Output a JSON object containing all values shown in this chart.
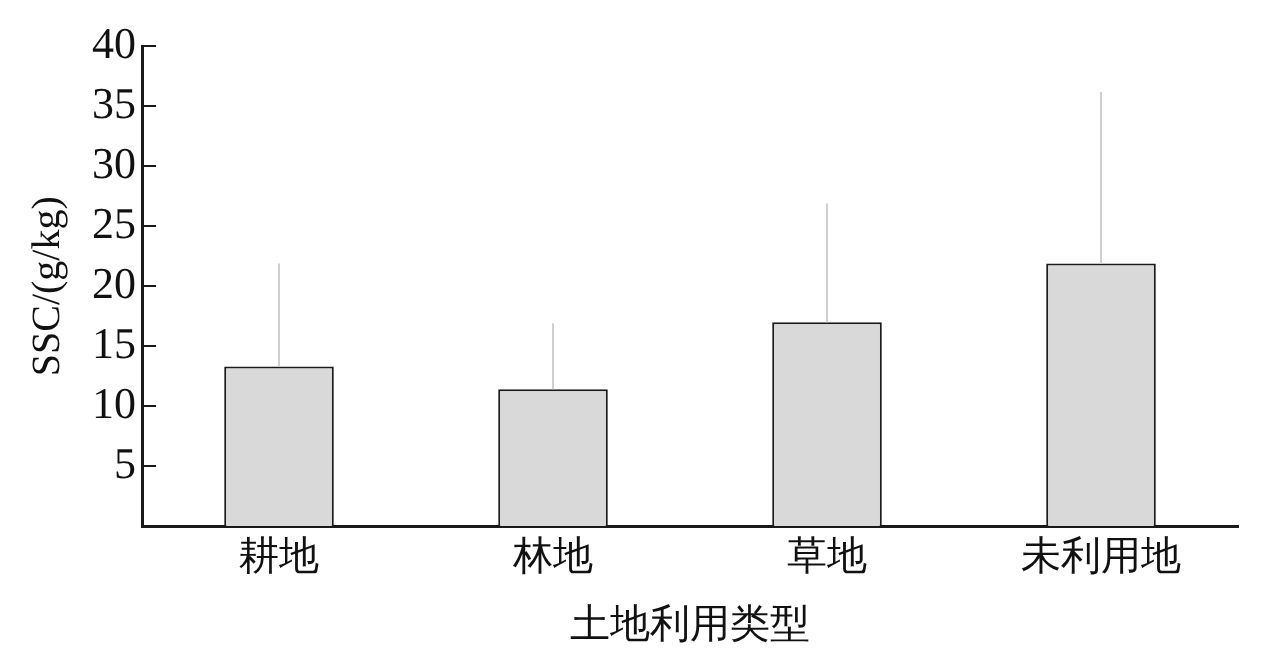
{
  "chart_data": {
    "type": "bar",
    "xlabel": "土地利用类型",
    "ylabel": "SSC/(g/kg)",
    "categories": [
      "耕地",
      "林地",
      "草地",
      "未利用地"
    ],
    "values": [
      13.3,
      11.4,
      17.0,
      21.9
    ],
    "errors": [
      [
        13.3,
        21.9
      ],
      [
        11.4,
        16.9
      ],
      [
        17.0,
        26.9
      ],
      [
        21.9,
        36.2
      ]
    ],
    "color": "#d9d9d9",
    "ylim": [
      0,
      40
    ],
    "yticks": [
      5,
      10,
      15,
      20,
      25,
      30,
      35,
      40
    ],
    "grid": false,
    "legend": false
  }
}
